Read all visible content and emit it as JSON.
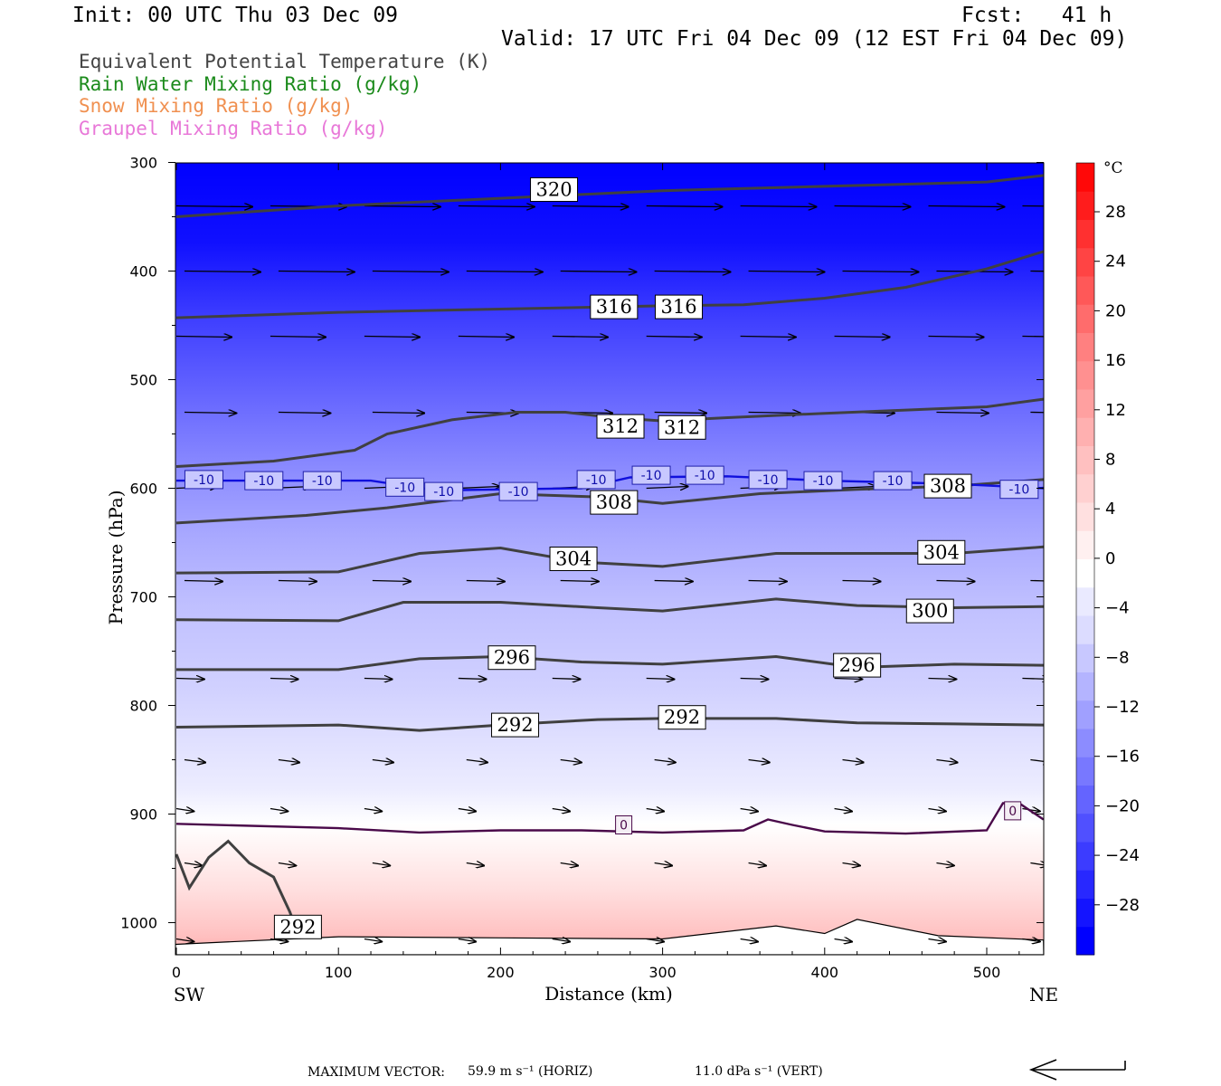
{
  "header": {
    "init": "Init: 00 UTC Thu 03 Dec 09",
    "fcst": "Fcst:   41 h",
    "valid": "Valid: 17 UTC Fri 04 Dec 09 (12 EST Fri 04 Dec 09)",
    "legend": [
      {
        "text": "Equivalent Potential Temperature (K)",
        "color": "#444444"
      },
      {
        "text": "Rain Water Mixing Ratio (g/kg)",
        "color": "#1a8a1a"
      },
      {
        "text": "Snow Mixing Ratio (g/kg)",
        "color": "#f09050"
      },
      {
        "text": "Graupel Mixing Ratio (g/kg)",
        "color": "#e878d8"
      }
    ]
  },
  "chart_data": {
    "type": "heatmap",
    "xlabel": "Distance (km)",
    "ylabel": "Pressure (hPa)",
    "xlim": [
      0,
      535
    ],
    "ylim": [
      1025,
      300
    ],
    "x_ticks": [
      0,
      100,
      200,
      300,
      400,
      500
    ],
    "y_ticks": [
      300,
      400,
      500,
      600,
      700,
      800,
      900,
      1000
    ],
    "x_end_labels": {
      "left": "SW",
      "right": "NE"
    },
    "colorbar": {
      "unit": "°C",
      "ticks": [
        28,
        24,
        20,
        16,
        12,
        8,
        4,
        0,
        -4,
        -8,
        -12,
        -16,
        -20,
        -24,
        -28
      ],
      "colors": [
        "#0000ff",
        "#1414ff",
        "#2828ff",
        "#3c3cff",
        "#5050ff",
        "#6464ff",
        "#7878ff",
        "#8c8cff",
        "#a0a0ff",
        "#b4b4ff",
        "#c8c8ff",
        "#dcdcff",
        "#eaeaff",
        "#ffffff",
        "#fff0f0",
        "#ffe0e0",
        "#ffd0d0",
        "#ffc0c0",
        "#ffb0b0",
        "#ffa0a0",
        "#ff9090",
        "#ff8080",
        "#ff6c6c",
        "#ff5858",
        "#ff4444",
        "#ff3030",
        "#ff1c1c",
        "#ff0808"
      ]
    },
    "theta_e_contours": [
      {
        "level": 320,
        "points": [
          [
            0,
            350
          ],
          [
            100,
            340
          ],
          [
            200,
            333
          ],
          [
            300,
            326
          ],
          [
            400,
            322
          ],
          [
            500,
            318
          ],
          [
            535,
            312
          ]
        ],
        "labels": [
          [
            233,
            325
          ]
        ]
      },
      {
        "level": 316,
        "points": [
          [
            0,
            443
          ],
          [
            100,
            438
          ],
          [
            200,
            435
          ],
          [
            300,
            432
          ],
          [
            350,
            431
          ],
          [
            400,
            425
          ],
          [
            450,
            415
          ],
          [
            500,
            398
          ],
          [
            535,
            382
          ]
        ],
        "labels": [
          [
            270,
            433
          ],
          [
            310,
            433
          ]
        ]
      },
      {
        "level": 312,
        "points": [
          [
            0,
            580
          ],
          [
            60,
            575
          ],
          [
            110,
            565
          ],
          [
            130,
            550
          ],
          [
            170,
            537
          ],
          [
            210,
            530
          ],
          [
            240,
            530
          ],
          [
            270,
            535
          ],
          [
            300,
            538
          ],
          [
            340,
            535
          ],
          [
            400,
            531
          ],
          [
            500,
            525
          ],
          [
            535,
            518
          ]
        ],
        "labels": [
          [
            274,
            543
          ],
          [
            312,
            544
          ]
        ]
      },
      {
        "level": 308,
        "points": [
          [
            0,
            632
          ],
          [
            80,
            625
          ],
          [
            130,
            618
          ],
          [
            200,
            605
          ],
          [
            260,
            608
          ],
          [
            300,
            614
          ],
          [
            360,
            605
          ],
          [
            420,
            601
          ],
          [
            480,
            598
          ],
          [
            535,
            592
          ]
        ],
        "labels": [
          [
            270,
            613
          ],
          [
            476,
            598
          ]
        ]
      },
      {
        "level": 304,
        "points": [
          [
            0,
            678
          ],
          [
            100,
            677
          ],
          [
            150,
            660
          ],
          [
            200,
            655
          ],
          [
            250,
            668
          ],
          [
            300,
            672
          ],
          [
            370,
            660
          ],
          [
            420,
            660
          ],
          [
            480,
            660
          ],
          [
            535,
            654
          ]
        ],
        "labels": [
          [
            245,
            665
          ],
          [
            472,
            659
          ]
        ]
      },
      {
        "level": 300,
        "points": [
          [
            0,
            721
          ],
          [
            100,
            722
          ],
          [
            140,
            705
          ],
          [
            200,
            705
          ],
          [
            260,
            710
          ],
          [
            300,
            713
          ],
          [
            370,
            702
          ],
          [
            420,
            708
          ],
          [
            480,
            710
          ],
          [
            535,
            709
          ]
        ],
        "labels": [
          [
            465,
            713
          ]
        ]
      },
      {
        "level": 296,
        "points": [
          [
            0,
            767
          ],
          [
            100,
            767
          ],
          [
            150,
            757
          ],
          [
            200,
            755
          ],
          [
            250,
            760
          ],
          [
            300,
            762
          ],
          [
            370,
            755
          ],
          [
            420,
            765
          ],
          [
            480,
            762
          ],
          [
            535,
            763
          ]
        ],
        "labels": [
          [
            207,
            756
          ],
          [
            420,
            763
          ]
        ]
      },
      {
        "level": 292,
        "points": [
          [
            0,
            820
          ],
          [
            100,
            818
          ],
          [
            150,
            823
          ],
          [
            200,
            818
          ],
          [
            260,
            813
          ],
          [
            300,
            812
          ],
          [
            370,
            812
          ],
          [
            420,
            816
          ],
          [
            480,
            817
          ],
          [
            535,
            818
          ]
        ],
        "labels": [
          [
            209,
            818
          ],
          [
            312,
            811
          ]
        ]
      },
      {
        "level": 292,
        "points": [
          [
            0,
            937
          ],
          [
            8,
            968
          ],
          [
            20,
            940
          ],
          [
            32,
            925
          ],
          [
            45,
            945
          ],
          [
            60,
            958
          ],
          [
            70,
            990
          ],
          [
            75,
            1010
          ]
        ],
        "labels": [
          [
            75,
            1004
          ]
        ]
      }
    ],
    "temperature_contours": [
      {
        "level": -10,
        "unit": "°C",
        "points": [
          [
            0,
            593
          ],
          [
            120,
            593
          ],
          [
            160,
            602
          ],
          [
            250,
            600
          ],
          [
            280,
            590
          ],
          [
            340,
            589
          ],
          [
            400,
            593
          ],
          [
            480,
            596
          ],
          [
            535,
            600
          ]
        ],
        "labels": [
          [
            17,
            592
          ],
          [
            54,
            593
          ],
          [
            90,
            593
          ],
          [
            141,
            599
          ],
          [
            165,
            603
          ],
          [
            211,
            603
          ],
          [
            259,
            592
          ],
          [
            293,
            588
          ],
          [
            326,
            588
          ],
          [
            365,
            592
          ],
          [
            399,
            593
          ],
          [
            442,
            593
          ],
          [
            520,
            601
          ]
        ]
      },
      {
        "level": 0,
        "unit": "°C",
        "points": [
          [
            0,
            909
          ],
          [
            100,
            913
          ],
          [
            150,
            917
          ],
          [
            200,
            915
          ],
          [
            250,
            915
          ],
          [
            300,
            917
          ],
          [
            350,
            915
          ],
          [
            365,
            905
          ],
          [
            380,
            910
          ],
          [
            400,
            916
          ],
          [
            450,
            918
          ],
          [
            500,
            915
          ],
          [
            510,
            890
          ],
          [
            520,
            890
          ],
          [
            535,
            905
          ]
        ],
        "labels": [
          [
            276,
            910
          ],
          [
            516,
            897
          ]
        ]
      }
    ],
    "maximum_vector": {
      "label": "MAXIMUM VECTOR:",
      "horizontal": "59.9 m s⁻¹ (HORIZ)",
      "vertical": "11.0 dPa s⁻¹ (VERT)"
    }
  }
}
